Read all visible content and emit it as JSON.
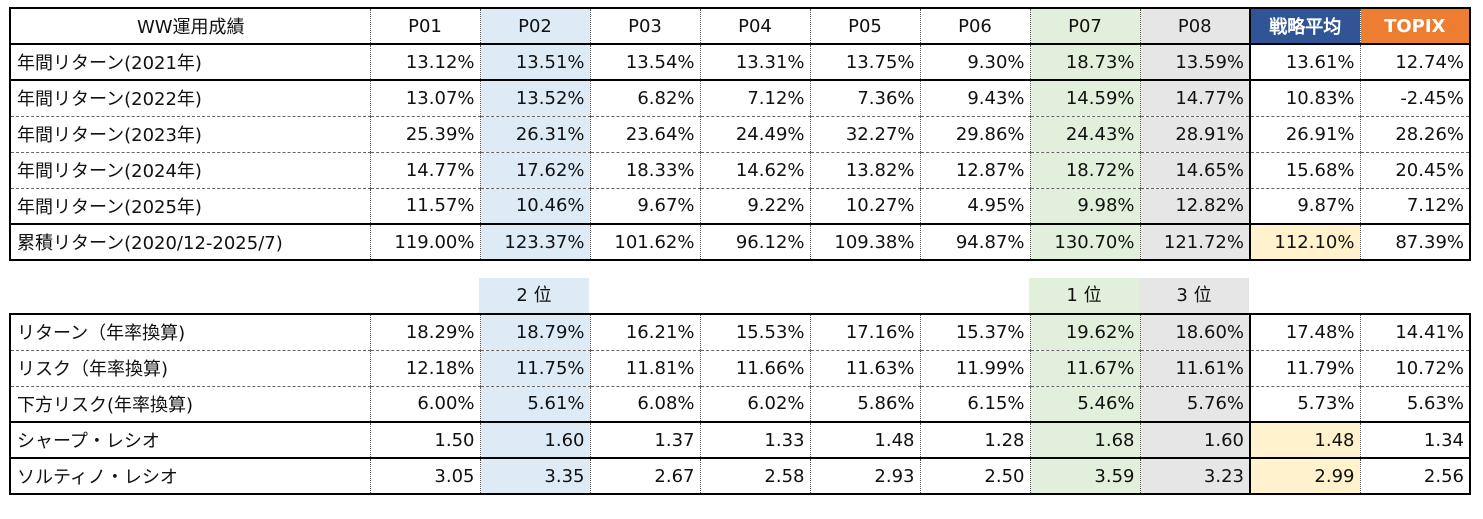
{
  "headers": [
    "WW運用成績",
    "P01",
    "P02",
    "P03",
    "P04",
    "P05",
    "P06",
    "P07",
    "P08",
    "戦略平均",
    "TOPIX"
  ],
  "returns_rows": [
    {
      "label": "年間リターン(2021年)",
      "values": [
        "13.12%",
        "13.51%",
        "13.54%",
        "13.31%",
        "13.75%",
        "9.30%",
        "18.73%",
        "13.59%",
        "13.61%",
        "12.74%"
      ]
    },
    {
      "label": "年間リターン(2022年)",
      "values": [
        "13.07%",
        "13.52%",
        "6.82%",
        "7.12%",
        "7.36%",
        "9.43%",
        "14.59%",
        "14.77%",
        "10.83%",
        "-2.45%"
      ]
    },
    {
      "label": "年間リターン(2023年)",
      "values": [
        "25.39%",
        "26.31%",
        "23.64%",
        "24.49%",
        "32.27%",
        "29.86%",
        "24.43%",
        "28.91%",
        "26.91%",
        "28.26%"
      ]
    },
    {
      "label": "年間リターン(2024年)",
      "values": [
        "14.77%",
        "17.62%",
        "18.33%",
        "14.62%",
        "13.82%",
        "12.87%",
        "18.72%",
        "14.65%",
        "15.68%",
        "20.45%"
      ]
    },
    {
      "label": "年間リターン(2025年)",
      "values": [
        "11.57%",
        "10.46%",
        "9.67%",
        "9.22%",
        "10.27%",
        "4.95%",
        "9.98%",
        "12.82%",
        "9.87%",
        "7.12%"
      ]
    },
    {
      "label": "累積リターン(2020/12-2025/7)",
      "values": [
        "119.00%",
        "123.37%",
        "101.62%",
        "96.12%",
        "109.38%",
        "94.87%",
        "130.70%",
        "121.72%",
        "112.10%",
        "87.39%"
      ]
    }
  ],
  "ranks": {
    "p02": "2 位",
    "p07": "1 位",
    "p08": "3 位"
  },
  "risk_rows": [
    {
      "label": "リターン（年率換算)",
      "values": [
        "18.29%",
        "18.79%",
        "16.21%",
        "15.53%",
        "17.16%",
        "15.37%",
        "19.62%",
        "18.60%",
        "17.48%",
        "14.41%"
      ]
    },
    {
      "label": "リスク（年率換算)",
      "values": [
        "12.18%",
        "11.75%",
        "11.81%",
        "11.66%",
        "11.63%",
        "11.99%",
        "11.67%",
        "11.61%",
        "11.79%",
        "10.72%"
      ]
    },
    {
      "label": "下方リスク(年率換算)",
      "values": [
        "6.00%",
        "5.61%",
        "6.08%",
        "6.02%",
        "5.86%",
        "6.15%",
        "5.46%",
        "5.76%",
        "5.73%",
        "5.63%"
      ]
    },
    {
      "label": "シャープ・レシオ",
      "values": [
        "1.50",
        "1.60",
        "1.37",
        "1.33",
        "1.48",
        "1.28",
        "1.68",
        "1.60",
        "1.48",
        "1.34"
      ]
    },
    {
      "label": "ソルティノ・レシオ",
      "values": [
        "3.05",
        "3.35",
        "2.67",
        "2.58",
        "2.93",
        "2.50",
        "3.59",
        "3.23",
        "2.99",
        "2.56"
      ]
    }
  ],
  "colors": {
    "p02_tint": "#ddebf7",
    "p07_tint": "#e2efda",
    "p08_tint": "#e7e6e6",
    "highlight": "#fff2cc",
    "avg_header": "#305496",
    "topix_header": "#ed7d31"
  }
}
